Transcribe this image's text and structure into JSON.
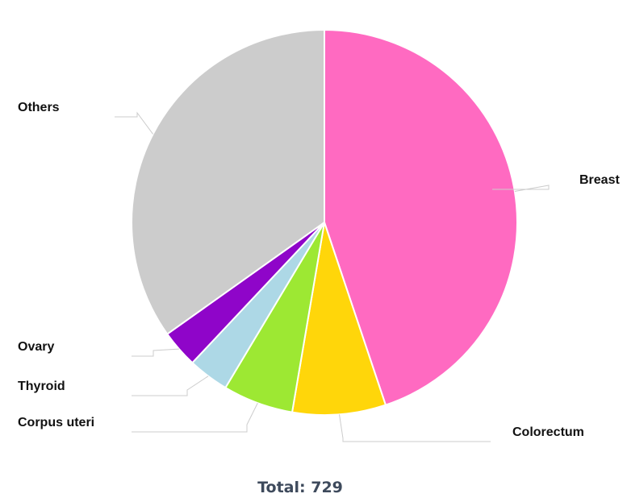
{
  "chart_data": {
    "type": "pie",
    "categories": [
      "Breast",
      "Colorectum",
      "Corpus uteri",
      "Thyroid",
      "Ovary",
      "Others"
    ],
    "values": [
      327,
      57,
      43,
      25,
      23,
      254
    ],
    "colors": [
      "#ff6ac1",
      "#ffd60a",
      "#9de833",
      "#add8e6",
      "#8f05c9",
      "#cccccc"
    ],
    "total_text": "Total: 729"
  }
}
